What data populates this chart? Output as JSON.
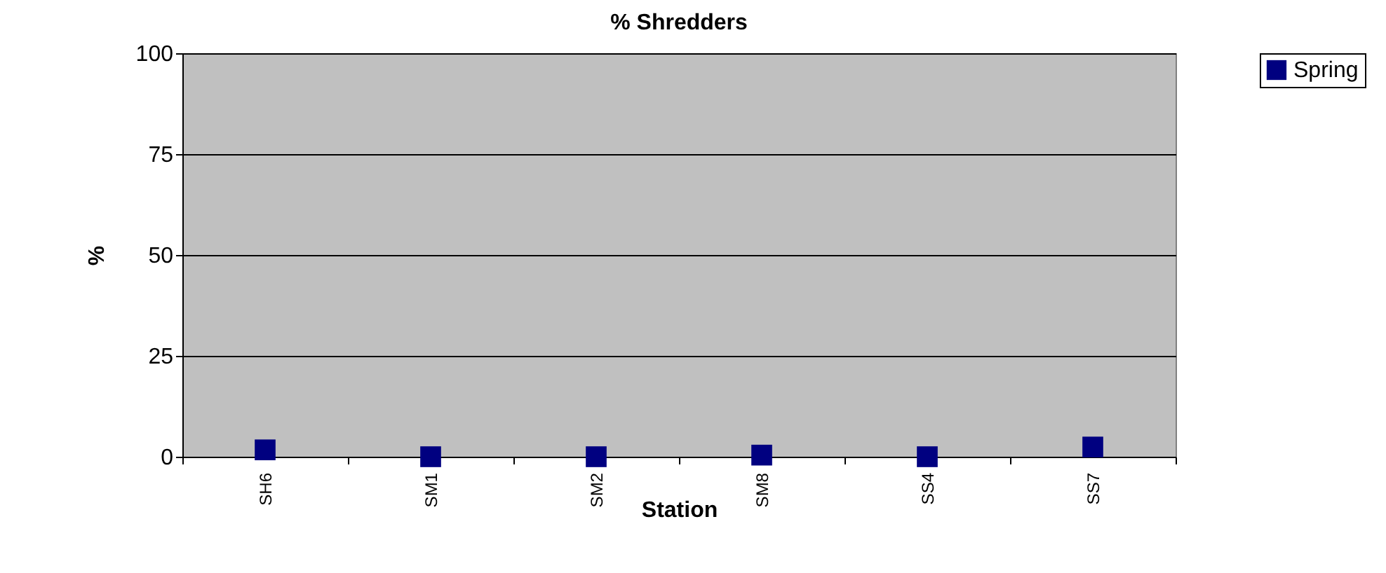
{
  "chart_data": {
    "type": "scatter",
    "title": "% Shredders",
    "xlabel": "Station",
    "ylabel": "%",
    "categories": [
      "SH6",
      "SM1",
      "SM2",
      "SM8",
      "SS4",
      "SS7"
    ],
    "series": [
      {
        "name": "Spring",
        "color": "#000080",
        "values": [
          1.7,
          0,
          0,
          0.4,
          0,
          2.4
        ]
      }
    ],
    "ylim": [
      0,
      100
    ],
    "yticks": [
      0,
      25,
      50,
      75,
      100
    ],
    "grid": "y",
    "legend": "right",
    "marker": "square"
  }
}
